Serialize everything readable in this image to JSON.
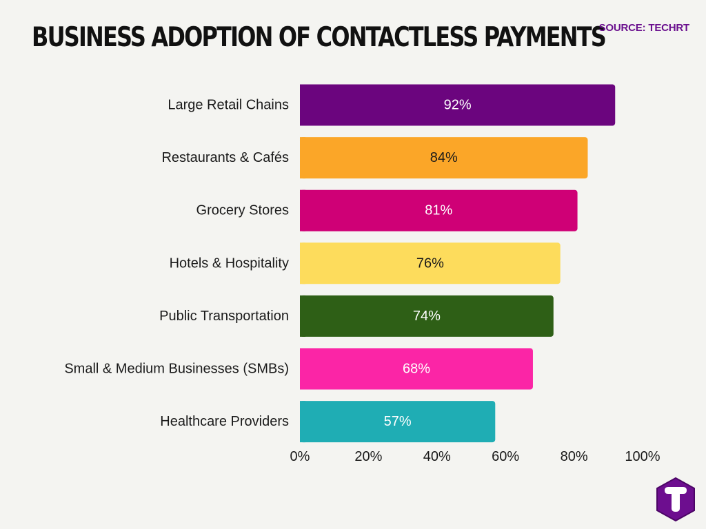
{
  "title": "BUSINESS ADOPTION OF CONTACTLESS PAYMENTS",
  "source": "SOURCE: TECHRT",
  "logo_icon": "techrt-logo-icon",
  "chart_data": {
    "type": "bar",
    "orientation": "horizontal",
    "title": "BUSINESS ADOPTION OF CONTACTLESS PAYMENTS",
    "xlabel": "",
    "ylabel": "",
    "xlim": [
      0,
      100
    ],
    "xticks": [
      "0%",
      "20%",
      "40%",
      "60%",
      "80%",
      "100%"
    ],
    "grid": false,
    "categories": [
      "Large Retail Chains",
      "Restaurants & Cafés",
      "Grocery Stores",
      "Hotels & Hospitality",
      "Public Transportation",
      "Small & Medium Businesses (SMBs)",
      "Healthcare Providers"
    ],
    "values": [
      92,
      84,
      81,
      76,
      74,
      68,
      57
    ],
    "value_labels": [
      "92%",
      "84%",
      "81%",
      "76%",
      "74%",
      "68%",
      "57%"
    ],
    "colors": [
      "#6b057e",
      "#fba628",
      "#cf0076",
      "#fddc5c",
      "#2e5f16",
      "#fb25a6",
      "#1fadb4"
    ],
    "label_colors": [
      "#ffffff",
      "#1a1a1a",
      "#ffffff",
      "#1a1a1a",
      "#ffffff",
      "#ffffff",
      "#ffffff"
    ]
  }
}
